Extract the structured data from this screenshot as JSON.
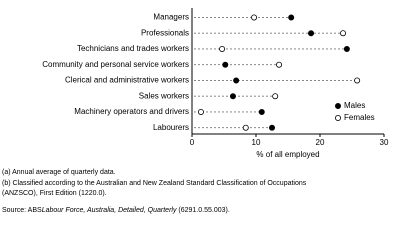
{
  "chart_data": {
    "type": "dot",
    "categories": [
      "Managers",
      "Professionals",
      "Technicians and trades workers",
      "Community and personal service workers",
      "Clerical and administrative workers",
      "Sales workers",
      "Machinery operators and drivers",
      "Labourers"
    ],
    "series": [
      {
        "name": "Males",
        "color": "#000000",
        "values": [
          15.5,
          18.6,
          24.2,
          5.2,
          6.9,
          6.4,
          10.9,
          12.5
        ]
      },
      {
        "name": "Females",
        "color": "#ffffff",
        "values": [
          9.7,
          23.6,
          4.7,
          13.6,
          25.8,
          13.0,
          1.4,
          8.4
        ]
      }
    ],
    "xlim": [
      0,
      30
    ],
    "xticks": [
      0,
      10,
      20,
      30
    ],
    "x_label": "% of all employed",
    "legend": "bottom-right"
  },
  "footnotes": [
    "(a) Annual average of quarterly data.",
    "(b) Classified according to the Australian and New Zealand Standard Classification of Occupations",
    "(ANZSCO), First Edition (1220.0)."
  ],
  "source": {
    "prefix": "Source: ABS",
    "title": "Labour Force, Australia, Detailed, Quarterly",
    "suffix": " (6291.0.55.003)."
  }
}
